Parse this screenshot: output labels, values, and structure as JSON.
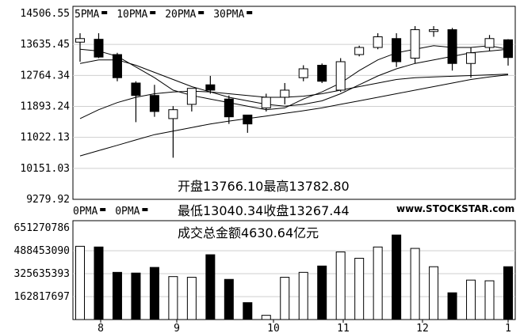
{
  "chart_data": [
    {
      "type": "candlestick",
      "ylim": [
        9279.92,
        14506.55
      ],
      "y_ticks": [
        "14506.55",
        "13635.45",
        "12764.34",
        "11893.24",
        "11022.13",
        "10151.03",
        "9279.92"
      ],
      "x_ticks": [
        "8",
        "9",
        "10",
        "11",
        "12",
        "1"
      ],
      "legend": [
        "5PMA",
        "10PMA",
        "20PMA",
        "30PMA"
      ],
      "ohlc": [
        {
          "o": 13700,
          "h": 13950,
          "l": 13150,
          "c": 13800
        },
        {
          "o": 13780,
          "h": 13950,
          "l": 13250,
          "c": 13280
        },
        {
          "o": 13350,
          "h": 13400,
          "l": 12600,
          "c": 12700
        },
        {
          "o": 12550,
          "h": 12600,
          "l": 11450,
          "c": 12200
        },
        {
          "o": 12200,
          "h": 12500,
          "l": 11600,
          "c": 11750
        },
        {
          "o": 11550,
          "h": 11900,
          "l": 10450,
          "c": 11800
        },
        {
          "o": 11950,
          "h": 12400,
          "l": 11750,
          "c": 12400
        },
        {
          "o": 12500,
          "h": 12750,
          "l": 12250,
          "c": 12350
        },
        {
          "o": 12100,
          "h": 12200,
          "l": 11400,
          "c": 11600
        },
        {
          "o": 11650,
          "h": 11650,
          "l": 11150,
          "c": 11400
        },
        {
          "o": 11850,
          "h": 12250,
          "l": 11750,
          "c": 12150
        },
        {
          "o": 12150,
          "h": 12550,
          "l": 11950,
          "c": 12350
        },
        {
          "o": 12700,
          "h": 13050,
          "l": 12600,
          "c": 12950
        },
        {
          "o": 13050,
          "h": 13100,
          "l": 12550,
          "c": 12600
        },
        {
          "o": 12350,
          "h": 13250,
          "l": 12300,
          "c": 13150
        },
        {
          "o": 13350,
          "h": 13600,
          "l": 13300,
          "c": 13550
        },
        {
          "o": 13550,
          "h": 13950,
          "l": 13500,
          "c": 13850
        },
        {
          "o": 13800,
          "h": 13950,
          "l": 13000,
          "c": 13150
        },
        {
          "o": 13250,
          "h": 14150,
          "l": 13100,
          "c": 14050
        },
        {
          "o": 14000,
          "h": 14150,
          "l": 13850,
          "c": 14050
        },
        {
          "o": 14050,
          "h": 14100,
          "l": 12900,
          "c": 13100
        },
        {
          "o": 13100,
          "h": 13550,
          "l": 12700,
          "c": 13400
        },
        {
          "o": 13550,
          "h": 13900,
          "l": 13450,
          "c": 13800
        },
        {
          "o": 13766.1,
          "h": 13782.8,
          "l": 13040.34,
          "c": 13267.44
        }
      ],
      "ma_series": [
        {
          "name": "5PMA",
          "values": [
            13500,
            13450,
            13300,
            13000,
            12700,
            12350,
            12200,
            12100,
            12000,
            11900,
            11800,
            11850,
            12100,
            12300,
            12550,
            12900,
            13200,
            13400,
            13500,
            13600,
            13550,
            13550,
            13600,
            13500
          ]
        },
        {
          "name": "10PMA",
          "values": [
            13100,
            13200,
            13200,
            13050,
            12850,
            12650,
            12450,
            12300,
            12150,
            12050,
            11950,
            11900,
            11950,
            12050,
            12250,
            12500,
            12750,
            12950,
            13100,
            13200,
            13300,
            13400,
            13450,
            13500
          ]
        },
        {
          "name": "20PMA",
          "values": [
            11550,
            11800,
            12000,
            12150,
            12250,
            12300,
            12320,
            12300,
            12250,
            12200,
            12150,
            12150,
            12180,
            12250,
            12350,
            12450,
            12550,
            12650,
            12700,
            12720,
            12740,
            12760,
            12780,
            12800
          ]
        },
        {
          "name": "30PMA",
          "values": [
            10500,
            10650,
            10800,
            10950,
            11100,
            11200,
            11300,
            11400,
            11480,
            11550,
            11620,
            11700,
            11770,
            11850,
            11950,
            12050,
            12150,
            12250,
            12350,
            12450,
            12550,
            12650,
            12720,
            12780
          ]
        }
      ],
      "color": "#000000"
    },
    {
      "type": "bar",
      "ylim": [
        0,
        651270786
      ],
      "y_ticks": [
        "651270786",
        "488453090",
        "325635393",
        "162817697"
      ],
      "legend": [
        "0PMA",
        "0PMA"
      ],
      "volumes": [
        520000000,
        515000000,
        335000000,
        330000000,
        370000000,
        305000000,
        300000000,
        460000000,
        285000000,
        120000000,
        30000000,
        300000000,
        335000000,
        380000000,
        480000000,
        435000000,
        515000000,
        600000000,
        505000000,
        375000000,
        190000000,
        280000000,
        275000000,
        375000000
      ]
    }
  ],
  "annotation": {
    "line1": "开盘13766.10最高13782.80",
    "line2": "最低13040.34收盘13267.44",
    "line3": "成交总金额4630.64亿元"
  },
  "watermark": "www.STOCKSTAR.com"
}
